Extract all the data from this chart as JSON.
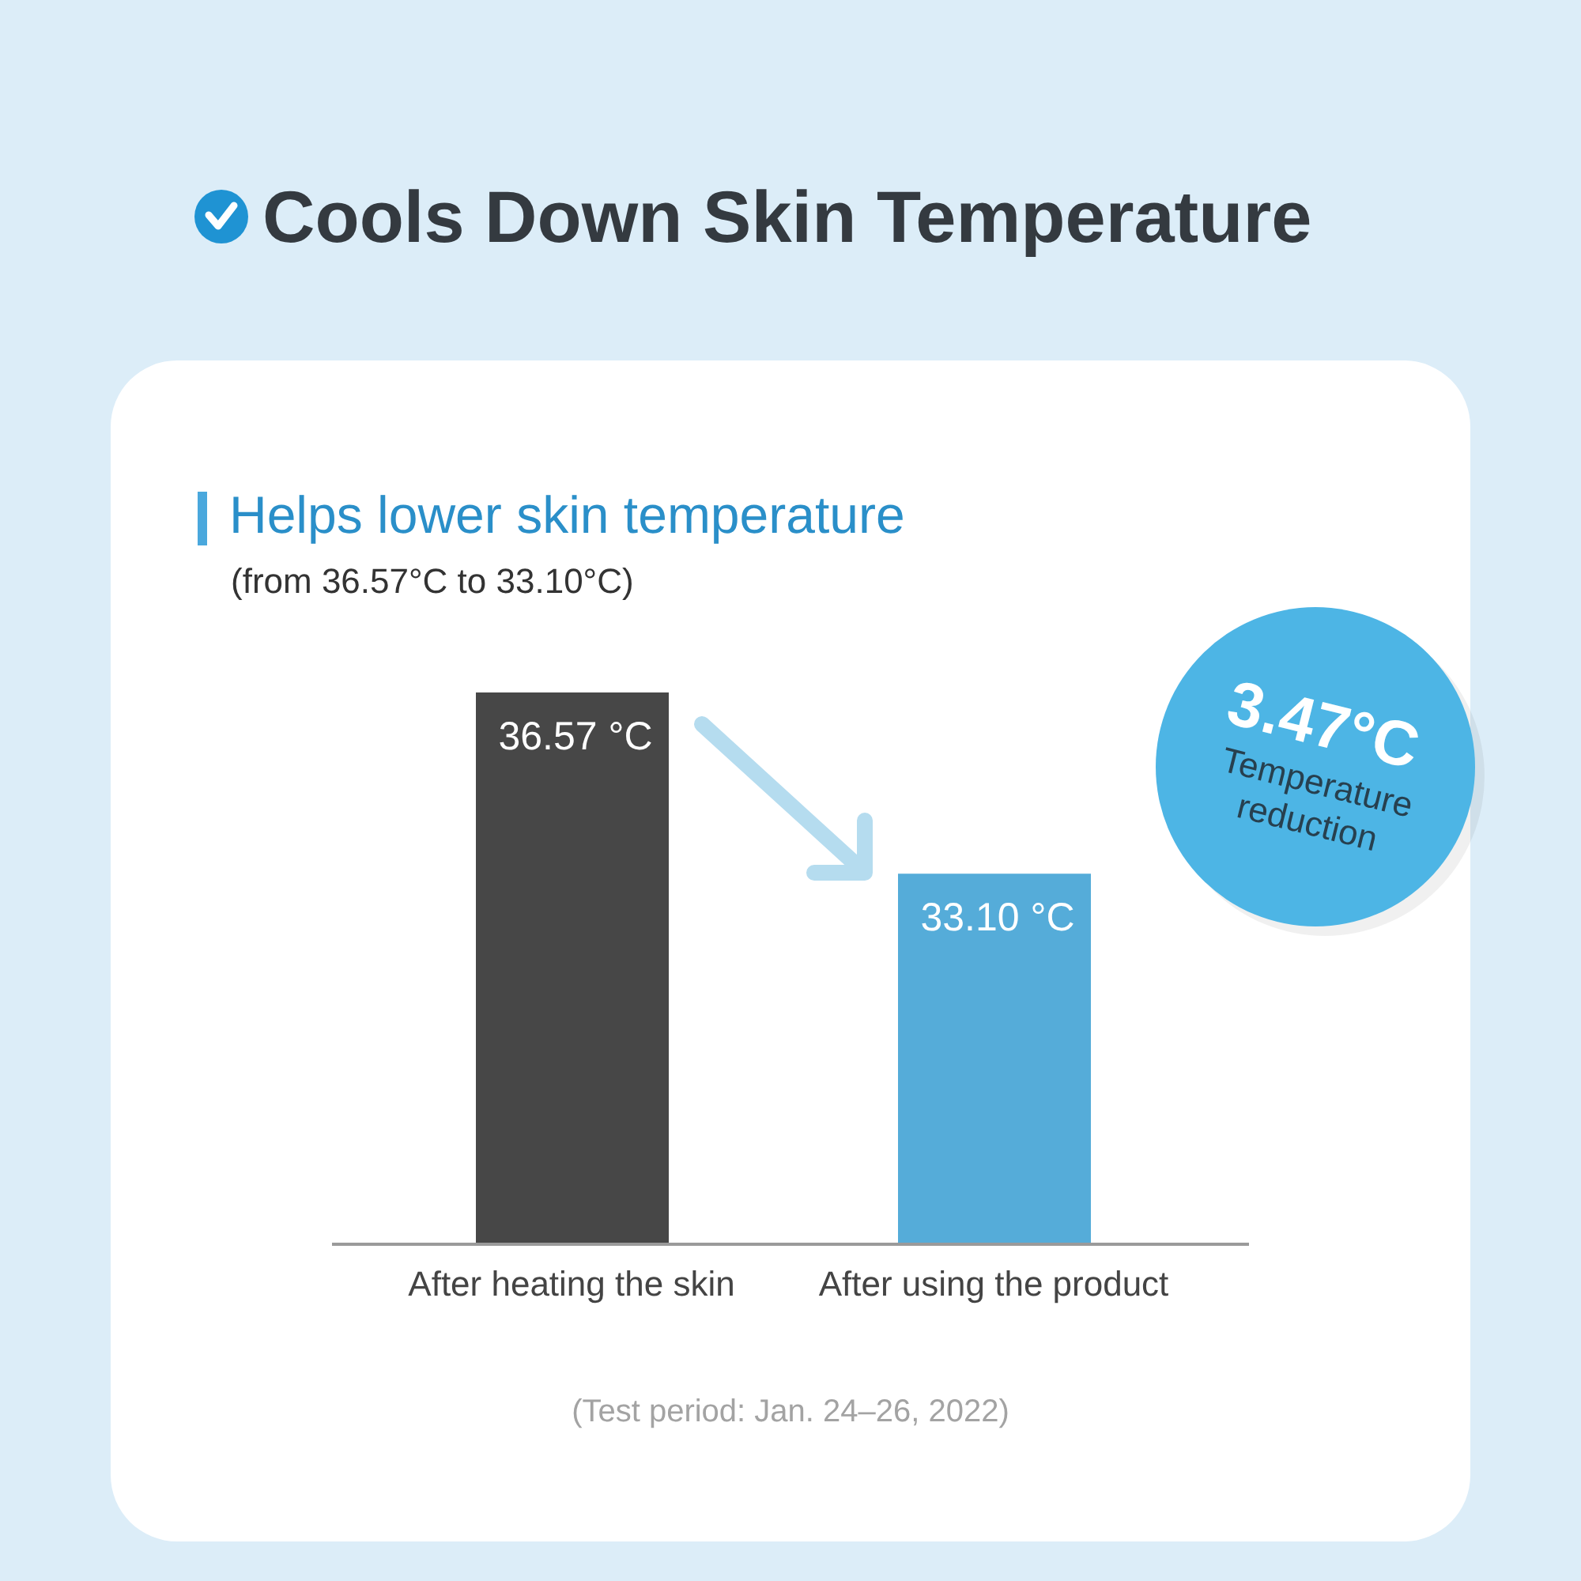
{
  "chart_data": {
    "type": "bar",
    "title": "Cools Down Skin Temperature",
    "subtitle": "Helps lower skin temperature",
    "categories": [
      "After heating the skin",
      "After using the product"
    ],
    "values": [
      36.57,
      33.1
    ],
    "colors": [
      "#474747",
      "#55acd9"
    ],
    "value_labels": [
      "36.57 °C",
      "33.10 °C"
    ],
    "ylim": [
      26,
      36.57
    ],
    "tick_labels": "x",
    "annotations": [
      "(from 36.57°C to 33.10°C)",
      "3.47°C",
      "Temperature reduction",
      "(Test period: Jan. 24–26, 2022)"
    ]
  }
}
